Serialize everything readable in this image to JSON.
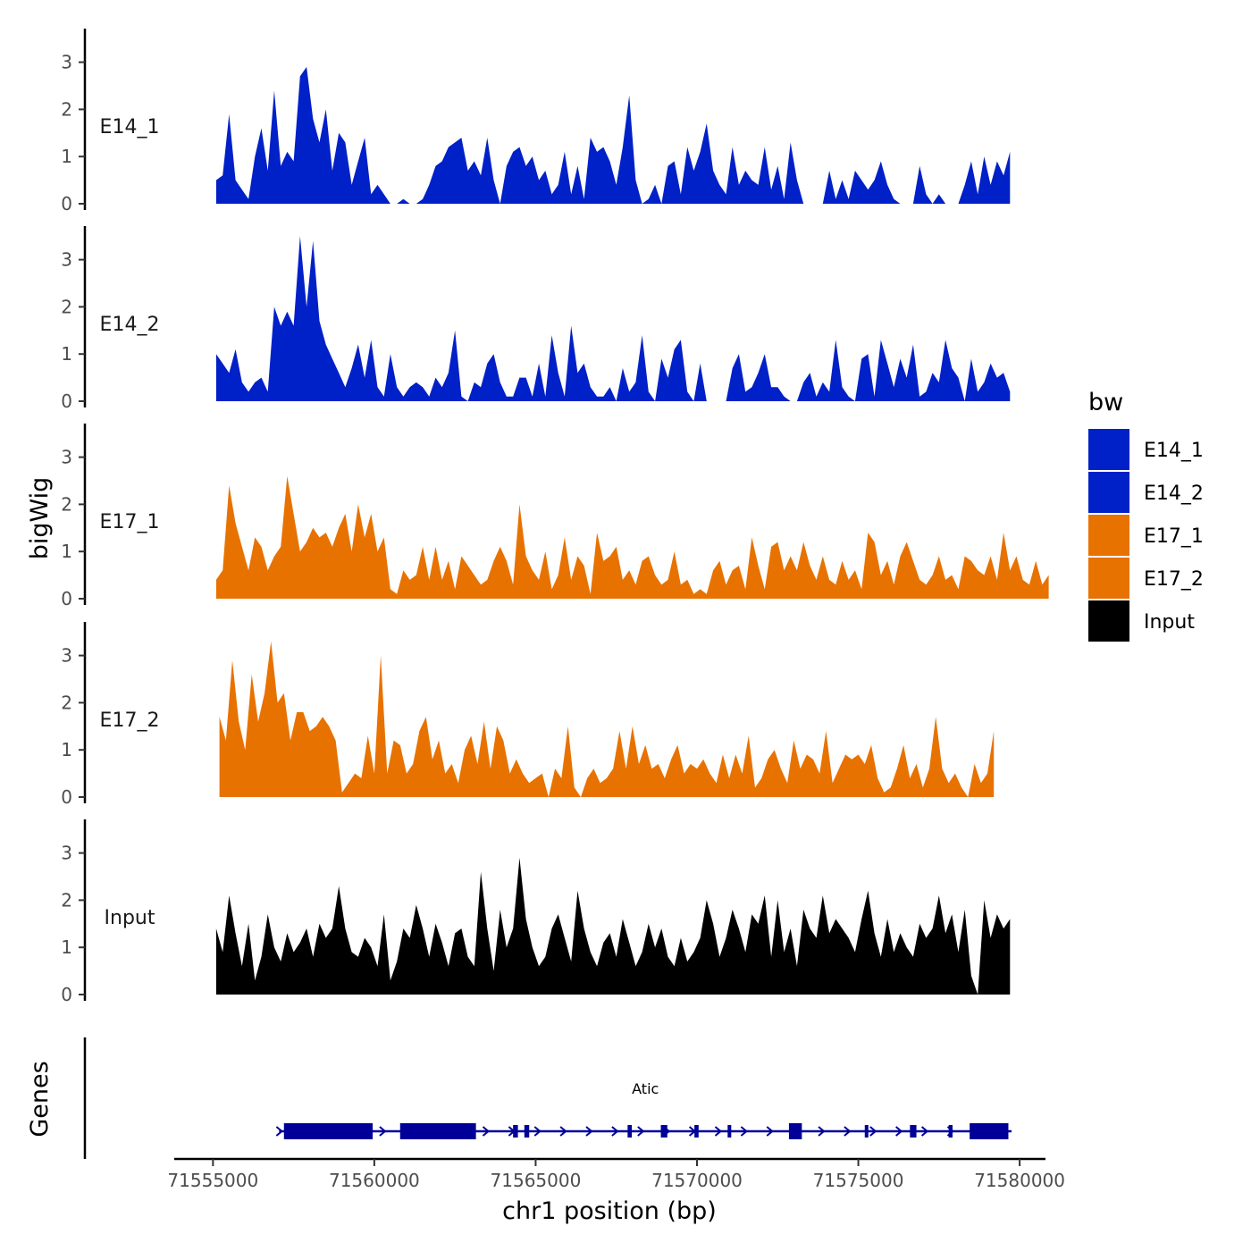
{
  "chart_data": {
    "type": "area",
    "title": "",
    "ylabel": "bigWig",
    "xlabel": "chr1 position (bp)",
    "xlim": [
      71553800,
      71580800
    ],
    "data_x_range": [
      71555100,
      71579700
    ],
    "ylim": [
      0,
      3.7
    ],
    "yticks": [
      "0",
      "1",
      "2",
      "3"
    ],
    "xticks": [
      {
        "value": 71555000,
        "label": "71555000"
      },
      {
        "value": 71560000,
        "label": "71560000"
      },
      {
        "value": 71565000,
        "label": "71565000"
      },
      {
        "value": 71570000,
        "label": "71570000"
      },
      {
        "value": 71575000,
        "label": "71575000"
      },
      {
        "value": 71580000,
        "label": "71580000"
      }
    ],
    "legend": {
      "title": "bw",
      "position": "right",
      "items": [
        {
          "name": "E14_1",
          "color": "#0020C8"
        },
        {
          "name": "E14_2",
          "color": "#0020C8"
        },
        {
          "name": "E17_1",
          "color": "#E87200"
        },
        {
          "name": "E17_2",
          "color": "#E87200"
        },
        {
          "name": "Input",
          "color": "#000000"
        }
      ]
    },
    "series": [
      {
        "name": "E14_1",
        "label": "E14_1",
        "color": "#0020C8",
        "start": 71555100,
        "step": 200,
        "values": [
          0.5,
          0.6,
          1.9,
          0.5,
          0.3,
          0.1,
          1.0,
          1.6,
          0.7,
          2.4,
          0.8,
          1.1,
          0.9,
          2.7,
          2.9,
          1.8,
          1.3,
          2.0,
          0.7,
          1.5,
          1.3,
          0.4,
          0.9,
          1.4,
          0.2,
          0.4,
          0.2,
          0,
          0,
          0.1,
          0,
          0,
          0.1,
          0.4,
          0.8,
          0.9,
          1.2,
          1.3,
          1.4,
          0.7,
          0.9,
          0.6,
          1.4,
          0.5,
          0,
          0.8,
          1.1,
          1.2,
          0.8,
          1.0,
          0.5,
          0.7,
          0.2,
          0.4,
          1.1,
          0.2,
          0.8,
          0.1,
          1.4,
          1.1,
          1.2,
          0.9,
          0.4,
          1.2,
          2.3,
          0.5,
          0,
          0.1,
          0.4,
          0,
          0.8,
          0.9,
          0.2,
          1.2,
          0.7,
          1.1,
          1.7,
          0.7,
          0.4,
          0.2,
          1.2,
          0.4,
          0.7,
          0.5,
          0.4,
          1.2,
          0.3,
          0.8,
          0.1,
          1.3,
          0.5,
          0,
          0,
          0,
          0,
          0.7,
          0.1,
          0.5,
          0.1,
          0.7,
          0.5,
          0.3,
          0.5,
          0.9,
          0.4,
          0.1,
          0,
          0,
          0,
          0.8,
          0.2,
          0,
          0.2,
          0,
          0,
          0,
          0.4,
          0.9,
          0.2,
          1.0,
          0.4,
          0.9,
          0.6,
          1.1
        ]
      },
      {
        "name": "E14_2",
        "label": "E14_2",
        "color": "#0020C8",
        "start": 71555100,
        "step": 200,
        "values": [
          1.0,
          0.8,
          0.6,
          1.1,
          0.4,
          0.2,
          0.4,
          0.5,
          0.2,
          2.0,
          1.6,
          1.9,
          1.6,
          3.5,
          2.0,
          3.4,
          1.7,
          1.2,
          0.9,
          0.6,
          0.3,
          0.7,
          1.2,
          0.5,
          1.3,
          0.3,
          0.1,
          1.0,
          0.3,
          0.1,
          0.3,
          0.4,
          0.3,
          0.1,
          0.5,
          0.3,
          0.6,
          1.5,
          0.1,
          0,
          0.4,
          0.3,
          0.8,
          1.0,
          0.4,
          0.1,
          0.1,
          0.5,
          0.5,
          0.1,
          0.8,
          0.1,
          1.4,
          0.6,
          0.1,
          1.6,
          0.6,
          0.8,
          0.3,
          0.1,
          0.1,
          0.3,
          0,
          0.7,
          0.2,
          0.4,
          1.4,
          0.2,
          0,
          0.9,
          0.5,
          1.1,
          1.3,
          0.2,
          0,
          0.8,
          0,
          0,
          0,
          0,
          0.7,
          1.0,
          0.2,
          0.3,
          0.6,
          1.0,
          0.3,
          0.3,
          0.1,
          0,
          0,
          0.4,
          0.6,
          0.1,
          0.4,
          0.2,
          1.3,
          0.3,
          0.1,
          0,
          0.9,
          1.0,
          0.1,
          1.3,
          0.8,
          0.3,
          0.9,
          0.5,
          1.2,
          0.1,
          0.2,
          0.6,
          0.4,
          1.3,
          0.7,
          0.5,
          0,
          0.9,
          0.2,
          0.4,
          0.8,
          0.5,
          0.6,
          0.2
        ]
      },
      {
        "name": "E17_1",
        "label": "E17_1",
        "color": "#E87200",
        "start": 71555100,
        "step": 200,
        "values": [
          0.4,
          0.6,
          2.4,
          1.6,
          1.1,
          0.6,
          1.3,
          1.1,
          0.6,
          0.9,
          1.1,
          2.6,
          1.8,
          1.0,
          1.2,
          1.5,
          1.3,
          1.4,
          1.1,
          1.5,
          1.8,
          1.0,
          2.0,
          1.3,
          1.8,
          1.0,
          1.3,
          0.2,
          0.1,
          0.6,
          0.4,
          0.5,
          1.1,
          0.4,
          1.1,
          0.4,
          0.8,
          0.2,
          0.9,
          0.7,
          0.5,
          0.3,
          0.4,
          0.8,
          1.1,
          0.8,
          0.3,
          2.0,
          0.9,
          0.6,
          0.4,
          1.0,
          0.2,
          0.5,
          1.3,
          0.4,
          0.9,
          0.7,
          0.1,
          1.4,
          0.8,
          0.9,
          1.1,
          0.4,
          0.6,
          0.3,
          0.8,
          0.9,
          0.5,
          0.3,
          0.4,
          1.0,
          0.3,
          0.4,
          0.1,
          0.2,
          0.1,
          0.6,
          0.8,
          0.3,
          0.6,
          0.7,
          0.2,
          1.3,
          0.7,
          0.2,
          1.1,
          1.2,
          0.6,
          0.9,
          0.6,
          1.2,
          0.7,
          0.4,
          0.9,
          0.4,
          0.3,
          0.8,
          0.4,
          0.6,
          0.2,
          1.4,
          1.2,
          0.5,
          0.8,
          0.3,
          0.9,
          1.2,
          0.8,
          0.4,
          0.3,
          0.5,
          0.9,
          0.4,
          0.5,
          0.2,
          0.9,
          0.8,
          0.6,
          0.5,
          0.9,
          0.4,
          1.4,
          0.6,
          0.9,
          0.4,
          0.3,
          0.8,
          0.3,
          0.5
        ]
      },
      {
        "name": "E17_2",
        "label": "E17_2",
        "color": "#E87200",
        "start": 71555200,
        "step": 200,
        "values": [
          1.7,
          1.2,
          2.9,
          1.6,
          1.0,
          2.6,
          1.6,
          2.2,
          3.3,
          2.0,
          2.2,
          1.2,
          1.8,
          1.8,
          1.4,
          1.5,
          1.7,
          1.5,
          1.2,
          0.1,
          0.3,
          0.5,
          0.4,
          1.3,
          0.5,
          3.0,
          0.5,
          1.2,
          1.1,
          0.5,
          0.7,
          1.4,
          1.7,
          0.8,
          1.2,
          0.5,
          0.7,
          0.3,
          1.0,
          1.3,
          0.7,
          1.6,
          0.6,
          1.5,
          1.2,
          0.5,
          0.8,
          0.5,
          0.3,
          0.4,
          0.5,
          0,
          0.6,
          0.4,
          1.5,
          0.2,
          0,
          0.4,
          0.6,
          0.3,
          0.4,
          0.6,
          1.4,
          0.6,
          1.5,
          0.7,
          1.1,
          0.6,
          0.7,
          0.4,
          0.8,
          1.1,
          0.5,
          0.7,
          0.6,
          0.8,
          0.5,
          0.3,
          0.9,
          0.4,
          0.9,
          0.5,
          1.3,
          0.2,
          0.4,
          0.8,
          1.0,
          0.6,
          0.3,
          1.2,
          0.6,
          0.9,
          0.8,
          0.5,
          1.4,
          0.3,
          0.6,
          0.9,
          0.8,
          0.9,
          0.7,
          1.1,
          0.4,
          0.1,
          0.2,
          0.6,
          1.1,
          0.4,
          0.7,
          0.2,
          0.6,
          1.7,
          0.6,
          0.3,
          0.5,
          0.2,
          0,
          0.7,
          0.3,
          0.5,
          1.4
        ]
      },
      {
        "name": "Input",
        "label": "Input",
        "color": "#000000",
        "start": 71555100,
        "step": 200,
        "values": [
          1.4,
          0.9,
          2.1,
          1.3,
          0.6,
          1.5,
          0.3,
          0.8,
          1.7,
          1.0,
          0.7,
          1.3,
          0.9,
          1.1,
          1.4,
          0.8,
          1.5,
          1.2,
          1.4,
          2.3,
          1.4,
          0.9,
          0.8,
          1.2,
          1.0,
          0.6,
          1.7,
          0.3,
          0.7,
          1.4,
          1.2,
          1.9,
          1.4,
          0.8,
          1.5,
          1.1,
          0.6,
          1.3,
          1.4,
          0.8,
          0.6,
          2.6,
          1.4,
          0.5,
          1.8,
          1.0,
          1.4,
          2.9,
          1.6,
          1.0,
          0.6,
          0.8,
          1.4,
          1.7,
          1.2,
          0.7,
          2.2,
          1.4,
          0.9,
          0.6,
          1.1,
          1.3,
          0.8,
          1.6,
          1.1,
          0.6,
          0.9,
          1.5,
          1.0,
          1.4,
          0.8,
          0.6,
          1.2,
          0.7,
          0.9,
          1.2,
          2.0,
          1.5,
          0.8,
          1.2,
          1.8,
          1.4,
          0.9,
          1.7,
          1.5,
          2.1,
          0.8,
          2.0,
          0.9,
          1.4,
          0.6,
          1.8,
          1.4,
          1.2,
          2.1,
          1.3,
          1.6,
          1.4,
          1.2,
          0.9,
          1.6,
          2.2,
          1.3,
          0.8,
          1.6,
          0.9,
          1.3,
          1.0,
          0.8,
          1.5,
          1.2,
          1.4,
          2.1,
          1.3,
          1.7,
          0.9,
          1.8,
          0.4,
          0,
          2.0,
          1.2,
          1.7,
          1.4,
          1.6
        ]
      }
    ],
    "genes": {
      "label": "Genes",
      "color": "#000099",
      "items": [
        {
          "name": "Atic",
          "start": 71557050,
          "end": 71579750,
          "strand": "+",
          "exons": [
            [
              71557200,
              71559950
            ],
            [
              71560800,
              71563150
            ],
            [
              71564300,
              71564450
            ],
            [
              71564650,
              71564800
            ],
            [
              71567850,
              71567980
            ],
            [
              71568880,
              71569080
            ],
            [
              71569920,
              71570050
            ],
            [
              71570950,
              71571060
            ],
            [
              71572850,
              71573250
            ],
            [
              71575200,
              71575300
            ],
            [
              71576600,
              71576800
            ],
            [
              71577800,
              71577920
            ],
            [
              71578450,
              71579650
            ]
          ]
        }
      ]
    }
  }
}
